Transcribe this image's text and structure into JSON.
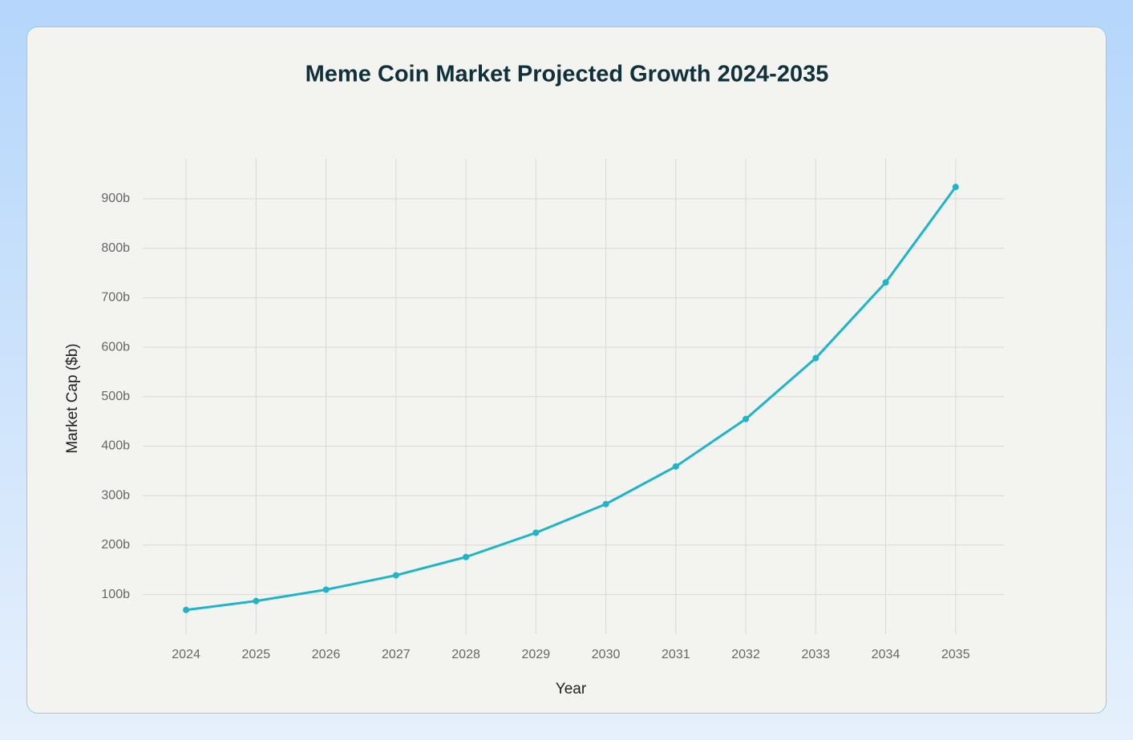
{
  "chart_data": {
    "type": "line",
    "title": "Meme Coin Market Projected Growth 2024-2035",
    "x_label": "Year",
    "y_label": "Market Cap ($b)",
    "x": [
      2024,
      2025,
      2026,
      2027,
      2028,
      2029,
      2030,
      2031,
      2032,
      2033,
      2034,
      2035
    ],
    "series": [
      {
        "name": "Market Cap",
        "color": "#1cb5c9",
        "values": [
          69,
          87,
          110,
          139,
          176,
          225,
          283,
          359,
          455,
          578,
          731,
          924
        ]
      }
    ],
    "xlim": [
      2023.38,
      2035.69
    ],
    "xticks": [
      2024,
      2025,
      2026,
      2027,
      2028,
      2029,
      2030,
      2031,
      2032,
      2033,
      2034,
      2035
    ],
    "ylim": [
      20,
      981
    ],
    "yticks": [
      {
        "value": 100,
        "label": "100b"
      },
      {
        "value": 200,
        "label": "200b"
      },
      {
        "value": 300,
        "label": "300b"
      },
      {
        "value": 400,
        "label": "400b"
      },
      {
        "value": 500,
        "label": "500b"
      },
      {
        "value": 600,
        "label": "600b"
      },
      {
        "value": 700,
        "label": "700b"
      },
      {
        "value": 800,
        "label": "800b"
      },
      {
        "value": 900,
        "label": "900b"
      }
    ],
    "grid": true
  }
}
